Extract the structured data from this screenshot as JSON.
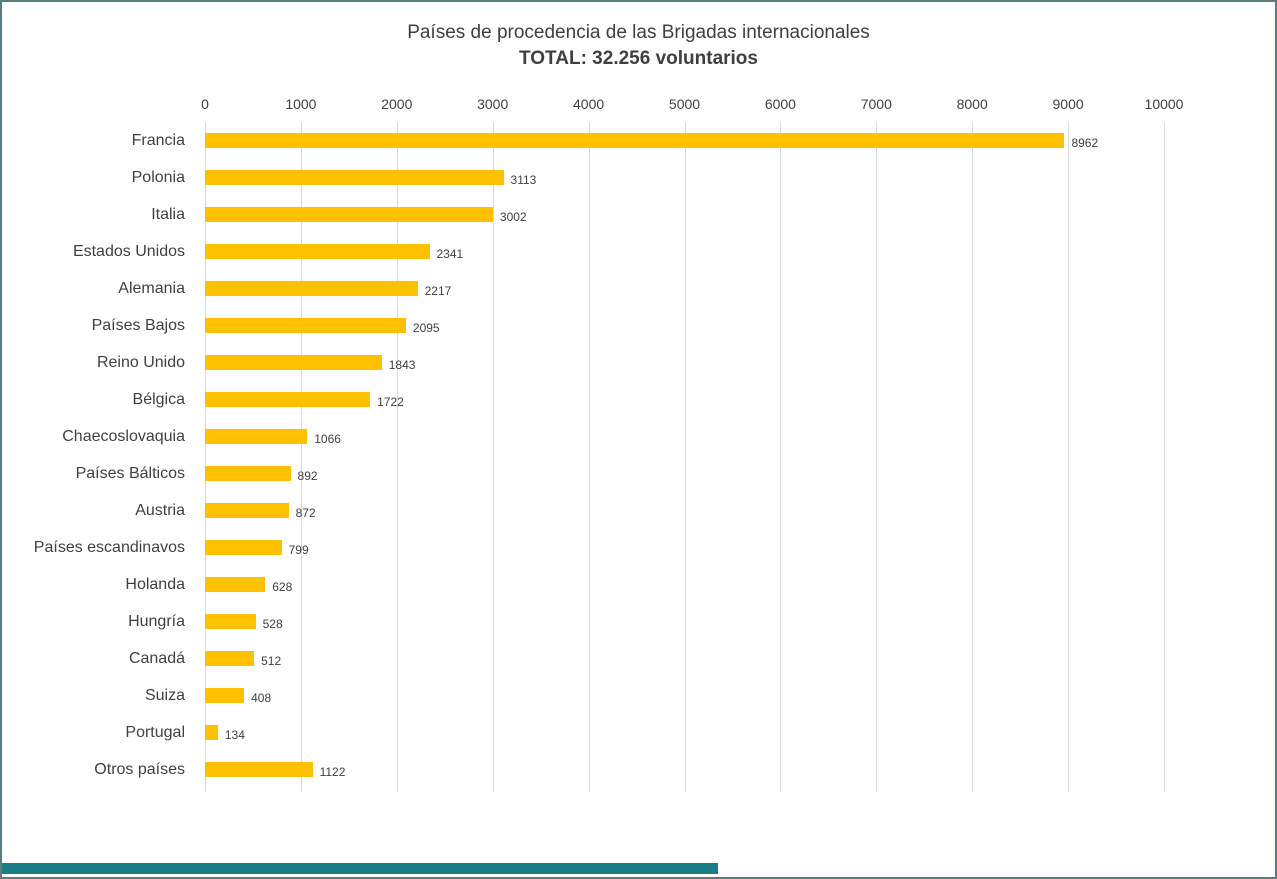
{
  "chart_data": {
    "type": "bar",
    "orientation": "horizontal",
    "title": "Países de procedencia de las Brigadas internacionales",
    "subtitle": "TOTAL: 32.256 voluntarios",
    "categories": [
      "Francia",
      "Polonia",
      "Italia",
      "Estados Unidos",
      "Alemania",
      "Países Bajos",
      "Reino Unido",
      "Bélgica",
      "Chaecoslovaquia",
      "Países Bálticos",
      "Austria",
      "Países escandinavos",
      "Holanda",
      "Hungría",
      "Canadá",
      "Suiza",
      "Portugal",
      "Otros países"
    ],
    "values": [
      8962,
      3113,
      3002,
      2341,
      2217,
      2095,
      1843,
      1722,
      1066,
      892,
      872,
      799,
      628,
      528,
      512,
      408,
      134,
      1122
    ],
    "xlim": [
      0,
      10000
    ],
    "xticks": [
      0,
      1000,
      2000,
      3000,
      4000,
      5000,
      6000,
      7000,
      8000,
      9000,
      10000
    ],
    "grid": true,
    "legend": "none",
    "bar_color": "#FFC000",
    "text_color": "#404040",
    "gridline_color": "#d9d9d9"
  },
  "footer": {
    "teal_bar_color": "#1b7e87"
  }
}
